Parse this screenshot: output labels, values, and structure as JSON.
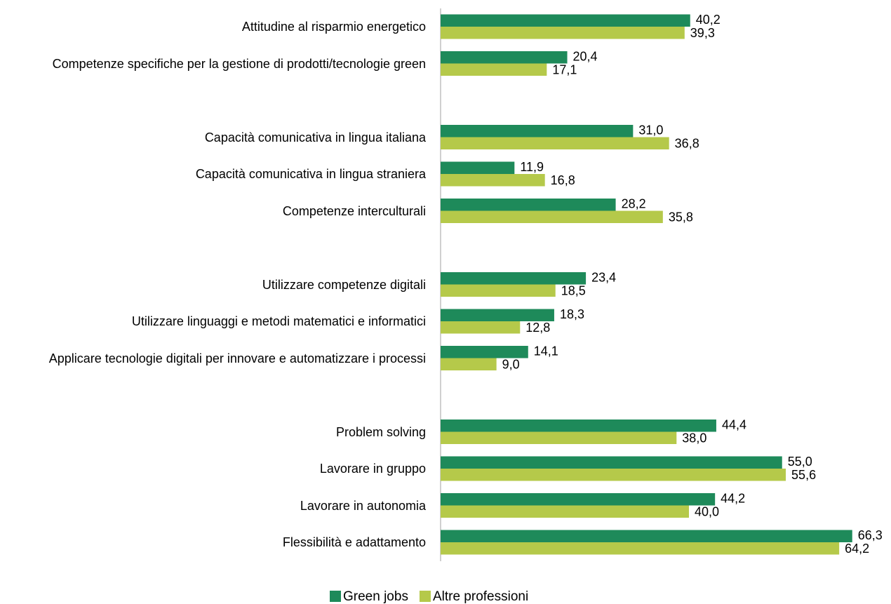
{
  "chart_data": {
    "type": "hbar",
    "categories": [
      "Attitudine al risparmio energetico",
      "Competenze specifiche per la gestione di prodotti/tecnologie green",
      null,
      "Capacità comunicativa in lingua italiana",
      "Capacità comunicativa in lingua straniera",
      "Competenze interculturali",
      null,
      "Utilizzare competenze digitali",
      "Utilizzare linguaggi e metodi matematici e informatici",
      "Applicare tecnologie digitali per innovare e automatizzare i processi",
      null,
      "Problem solving",
      "Lavorare in gruppo",
      "Lavorare in autonomia",
      "Flessibilità e adattamento"
    ],
    "series": [
      {
        "name": "Green jobs",
        "color": "#1e8a5a",
        "values": [
          40.2,
          20.4,
          null,
          31.0,
          11.9,
          28.2,
          null,
          23.4,
          18.3,
          14.1,
          null,
          44.4,
          55.0,
          44.2,
          66.3
        ],
        "value_labels": [
          "40,2",
          "20,4",
          null,
          "31,0",
          "11,9",
          "28,2",
          null,
          "23,4",
          "18,3",
          "14,1",
          null,
          "44,4",
          "55,0",
          "44,2",
          "66,3"
        ]
      },
      {
        "name": "Altre professioni",
        "color": "#b5c94a",
        "values": [
          39.3,
          17.1,
          null,
          36.8,
          16.8,
          35.8,
          null,
          18.5,
          12.8,
          9.0,
          null,
          38.0,
          55.6,
          40.0,
          64.2
        ],
        "value_labels": [
          "39,3",
          "17,1",
          null,
          "36,8",
          "16,8",
          "35,8",
          null,
          "18,5",
          "12,8",
          "9,0",
          null,
          "38,0",
          "55,6",
          "40,0",
          "64,2"
        ]
      }
    ],
    "legend": "bottom"
  }
}
